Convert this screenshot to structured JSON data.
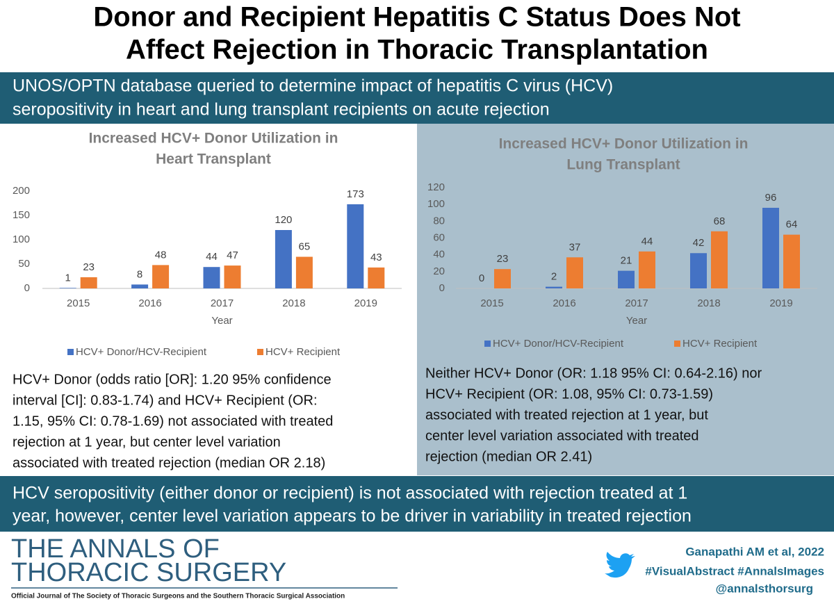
{
  "title": [
    "Donor and Recipient Hepatitis C Status Does Not",
    "Affect Rejection in Thoracic Transplantation"
  ],
  "banner": [
    "UNOS/OPTN database queried to determine impact of hepatitis C virus (HCV)",
    "seropositivity in heart and lung transplant recipients on acute rejection"
  ],
  "chart_data": [
    {
      "type": "bar",
      "title": [
        "Increased HCV+ Donor Utilization  in",
        "Heart Transplant"
      ],
      "categories": [
        "2015",
        "2016",
        "2017",
        "2018",
        "2019"
      ],
      "xlabel": "Year",
      "series": [
        {
          "name": "HCV+ Donor/HCV-Recipient",
          "color": "#4472c4",
          "values": [
            1,
            8,
            44,
            120,
            173
          ]
        },
        {
          "name": "HCV+ Recipient",
          "color": "#ed7d31",
          "values": [
            23,
            48,
            47,
            65,
            43
          ]
        }
      ],
      "ylim": [
        0,
        200
      ],
      "yticks": [
        0,
        50,
        100,
        150,
        200
      ],
      "grid": false,
      "legend": "bottom"
    },
    {
      "type": "bar",
      "title": [
        "Increased HCV+ Donor Utilization  in",
        "Lung Transplant"
      ],
      "categories": [
        "2015",
        "2016",
        "2017",
        "2018",
        "2019"
      ],
      "xlabel": "Year",
      "series": [
        {
          "name": "HCV+ Donor/HCV-Recipient",
          "color": "#4472c4",
          "values": [
            0,
            2,
            21,
            42,
            96
          ]
        },
        {
          "name": "HCV+ Recipient",
          "color": "#ed7d31",
          "values": [
            23,
            37,
            44,
            68,
            64
          ]
        }
      ],
      "ylim": [
        0,
        120
      ],
      "yticks": [
        0,
        20,
        40,
        60,
        80,
        100,
        120
      ],
      "grid": false,
      "legend": "bottom"
    }
  ],
  "findings": [
    [
      "HCV+ Donor (odds ratio [OR]: 1.20 95% confidence",
      "interval [CI]: 0.83-1.74) and HCV+ Recipient (OR:",
      "1.15, 95% CI: 0.78-1.69) not associated with treated",
      "rejection at 1 year, but center level variation",
      "associated with treated rejection (median OR 2.18)"
    ],
    [
      "Neither HCV+ Donor (OR: 1.18 95% CI: 0.64-2.16) nor",
      "HCV+ Recipient (OR: 1.08, 95% CI: 0.73-1.59)",
      "associated with treated rejection at 1 year, but",
      "center level variation associated with treated",
      "rejection (median OR 2.41)"
    ]
  ],
  "conclusion": [
    "HCV seropositivity (either donor or recipient) is not associated with rejection treated at 1",
    "year, however, center level variation appears to be driver in variability in treated rejection"
  ],
  "footer": {
    "journal": [
      "THE ANNALS OF",
      "THORACIC SURGERY"
    ],
    "subtitle": "Official Journal of The Society of Thoracic Surgeons and the Southern Thoracic Surgical Association",
    "citation": "Ganapathi AM et al, 2022",
    "hashtags": "#VisualAbstract #AnnalsImages",
    "handle": "@annalsthorsurg"
  }
}
